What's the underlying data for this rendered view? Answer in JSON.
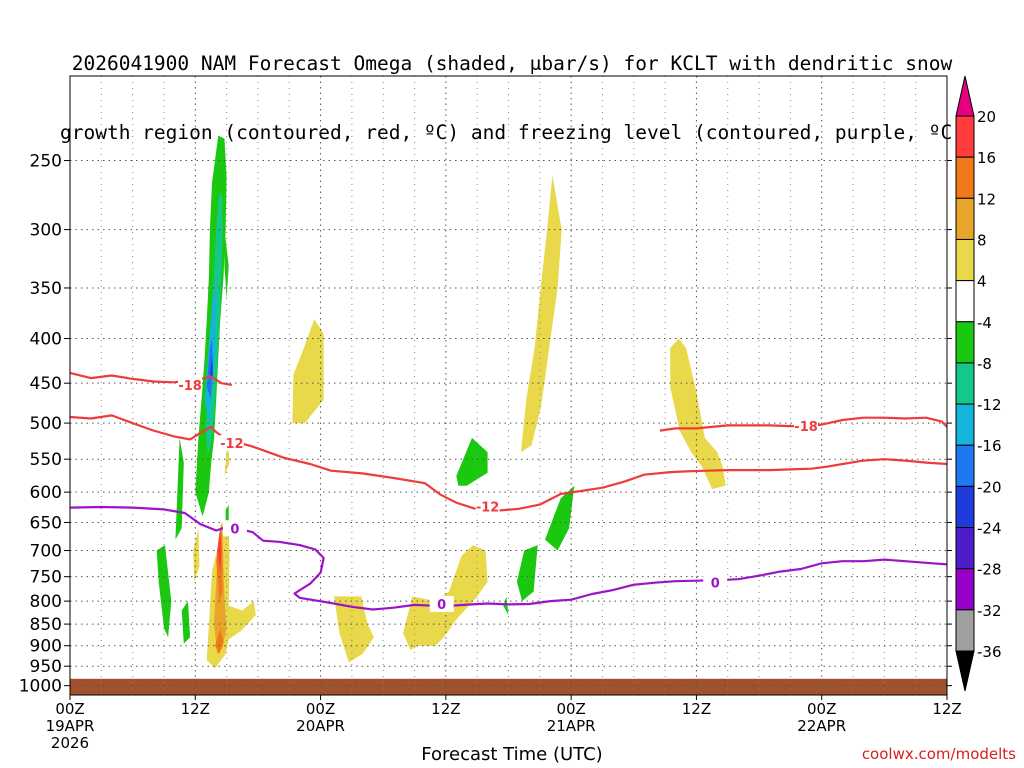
{
  "title_line1": "2026041900 NAM Forecast Omega (shaded, μbar/s) for KCLT with dendritic snow",
  "title_line2": "growth region (contoured, red, ºC) and freezing level (contoured, purple, ºC)",
  "xaxis_title": "Forecast Time (UTC)",
  "credit": "coolwx.com/modelts",
  "chart_data": {
    "type": "heatmap",
    "y_axis": {
      "unit": "hPa",
      "ticks": [
        250,
        300,
        350,
        400,
        450,
        500,
        550,
        600,
        650,
        700,
        750,
        800,
        850,
        900,
        950,
        1000
      ],
      "scale": "log",
      "range": [
        1025,
        200
      ],
      "grid": true
    },
    "x_axis": {
      "unit": "forecast hours",
      "range": [
        0,
        84
      ],
      "ticks": [
        {
          "h": 0,
          "line1": "00Z",
          "line2": "19APR",
          "line3": "2026"
        },
        {
          "h": 12,
          "line1": "12Z",
          "line2": "",
          "line3": ""
        },
        {
          "h": 24,
          "line1": "00Z",
          "line2": "20APR",
          "line3": ""
        },
        {
          "h": 36,
          "line1": "12Z",
          "line2": "",
          "line3": ""
        },
        {
          "h": 48,
          "line1": "00Z",
          "line2": "21APR",
          "line3": ""
        },
        {
          "h": 60,
          "line1": "12Z",
          "line2": "",
          "line3": ""
        },
        {
          "h": 72,
          "line1": "00Z",
          "line2": "22APR",
          "line3": ""
        },
        {
          "h": 84,
          "line1": "12Z",
          "line2": "",
          "line3": ""
        }
      ],
      "minor_grid_hours": [
        3,
        6,
        9,
        15,
        18,
        21,
        27,
        30,
        33,
        39,
        42,
        45,
        51,
        54,
        57,
        63,
        66,
        69,
        75,
        78,
        81
      ],
      "grid": true
    },
    "colorbar": {
      "labels": [
        "20",
        "16",
        "12",
        "8",
        "4",
        "-4",
        "-8",
        "-12",
        "-16",
        "-20",
        "-24",
        "-28",
        "-32",
        "-36"
      ],
      "colors": [
        "#e6007e",
        "#ff3b3b",
        "#f07a1a",
        "#e8a52a",
        "#e8d84a",
        "#ffffff",
        "#19c80f",
        "#14c88a",
        "#14b4dc",
        "#1e78f0",
        "#1e3cdc",
        "#4b1ec8",
        "#9600c8",
        "#a0a0a0",
        "#000000"
      ]
    },
    "omega_colors": {
      "lt_minus4": "#19c80f",
      "lt_minus8": "#14c88a",
      "lt_minus12": "#14b4dc",
      "lt_minus16": "#1e78f0",
      "lt_minus20": "#1e3cdc",
      "gt_4": "#e8d84a",
      "gt_8": "#e8a52a",
      "gt_12": "#f07a1a",
      "gt_16": "#ff3b3b"
    },
    "ground_color": "#a0522d",
    "ground_top_hPa": 982,
    "contours": [
      {
        "name": "-18",
        "color": "#ee3c3c",
        "label": "-18",
        "label_at": [
          11.5,
          452
        ],
        "points": [
          [
            0,
            438
          ],
          [
            2,
            444
          ],
          [
            4,
            441
          ],
          [
            6,
            445
          ],
          [
            8,
            448
          ],
          [
            10,
            449
          ],
          [
            11.5,
            446
          ],
          [
            12.5,
            445
          ],
          [
            13.5,
            442
          ],
          [
            14.5,
            450
          ],
          [
            15.5,
            452
          ]
        ]
      },
      {
        "name": "-18",
        "color": "#ee3c3c",
        "label": "-18",
        "label_at": [
          70.5,
          504
        ],
        "points": [
          [
            56.5,
            510
          ],
          [
            58,
            507
          ],
          [
            60,
            507
          ],
          [
            61.5,
            505
          ],
          [
            63,
            503
          ],
          [
            65,
            503
          ],
          [
            67,
            503
          ],
          [
            69,
            504
          ],
          [
            70.5,
            504
          ],
          [
            72,
            502
          ],
          [
            74,
            496
          ],
          [
            76,
            493
          ],
          [
            78,
            493
          ],
          [
            80,
            494
          ],
          [
            82,
            493
          ],
          [
            83.5,
            498
          ],
          [
            84,
            505
          ]
        ]
      },
      {
        "name": "-12",
        "color": "#ee3c3c",
        "label": "-12",
        "label_at": [
          15.5,
          527
        ],
        "points": [
          [
            0,
            492
          ],
          [
            2,
            494
          ],
          [
            4,
            490
          ],
          [
            6,
            500
          ],
          [
            8,
            510
          ],
          [
            10,
            518
          ],
          [
            11.5,
            522
          ],
          [
            12.5,
            513
          ],
          [
            13.5,
            505
          ],
          [
            14,
            512
          ],
          [
            15,
            522
          ],
          [
            16.5,
            528
          ],
          [
            17.5,
            532
          ],
          [
            19,
            540
          ],
          [
            20.5,
            548
          ],
          [
            23,
            557
          ],
          [
            25,
            567
          ],
          [
            28,
            571
          ],
          [
            31,
            578
          ],
          [
            34,
            586
          ],
          [
            35.5,
            604
          ],
          [
            37,
            617
          ],
          [
            39,
            628
          ],
          [
            41,
            630
          ],
          [
            43,
            627
          ],
          [
            45,
            620
          ],
          [
            47,
            603
          ],
          [
            49,
            598
          ],
          [
            51,
            593
          ],
          [
            53,
            584
          ],
          [
            55,
            573
          ],
          [
            57.5,
            569
          ],
          [
            59,
            568
          ],
          [
            61,
            567
          ],
          [
            63,
            566
          ],
          [
            65,
            566
          ],
          [
            67,
            566
          ],
          [
            69,
            565
          ],
          [
            71,
            564
          ],
          [
            72.5,
            561
          ],
          [
            74,
            557
          ],
          [
            76,
            552
          ],
          [
            78,
            550
          ],
          [
            80,
            552
          ],
          [
            82,
            555
          ],
          [
            84,
            557
          ]
        ]
      },
      {
        "name": "-12",
        "color": "#ee3c3c",
        "label": "-12",
        "label_at": [
          40,
          623
        ],
        "points": [
          [
            15.5,
            525
          ],
          [
            16.5,
            526
          ]
        ]
      },
      {
        "name": "0",
        "color": "#9b14c8",
        "label": "0",
        "label_at": [
          15.8,
          660
        ],
        "points": [
          [
            0,
            625
          ],
          [
            3,
            624
          ],
          [
            6,
            625
          ],
          [
            9,
            628
          ],
          [
            11,
            634
          ],
          [
            12.5,
            653
          ],
          [
            14,
            664
          ],
          [
            15,
            658
          ],
          [
            16,
            660
          ],
          [
            17.5,
            667
          ],
          [
            18.5,
            682
          ],
          [
            20,
            684
          ],
          [
            22,
            690
          ],
          [
            23.5,
            698
          ],
          [
            24.3,
            714
          ],
          [
            24,
            742
          ],
          [
            23,
            764
          ],
          [
            21.5,
            784
          ],
          [
            22,
            793
          ],
          [
            25,
            804
          ],
          [
            27,
            812
          ],
          [
            29,
            818
          ],
          [
            31,
            814
          ],
          [
            33,
            808
          ],
          [
            35,
            810
          ],
          [
            37,
            809
          ],
          [
            38.5,
            807
          ],
          [
            40,
            805
          ],
          [
            42,
            807
          ],
          [
            44,
            806
          ],
          [
            46,
            800
          ],
          [
            48,
            797
          ],
          [
            50,
            785
          ],
          [
            52,
            777
          ],
          [
            54,
            766
          ],
          [
            56,
            762
          ],
          [
            58,
            759
          ],
          [
            60,
            758
          ],
          [
            62,
            757
          ],
          [
            64,
            755
          ],
          [
            66,
            748
          ],
          [
            68,
            740
          ],
          [
            70,
            735
          ],
          [
            72,
            724
          ],
          [
            74,
            720
          ],
          [
            76,
            720
          ],
          [
            78,
            717
          ],
          [
            80,
            720
          ],
          [
            82,
            723
          ],
          [
            84,
            726
          ]
        ]
      }
    ],
    "contour_labels_other": [
      {
        "text": "0",
        "h": 61.8,
        "hPa": 762,
        "color": "#9b14c8"
      },
      {
        "text": "0",
        "h": 35.6,
        "hPa": 806,
        "color": "#9b14c8"
      }
    ]
  }
}
